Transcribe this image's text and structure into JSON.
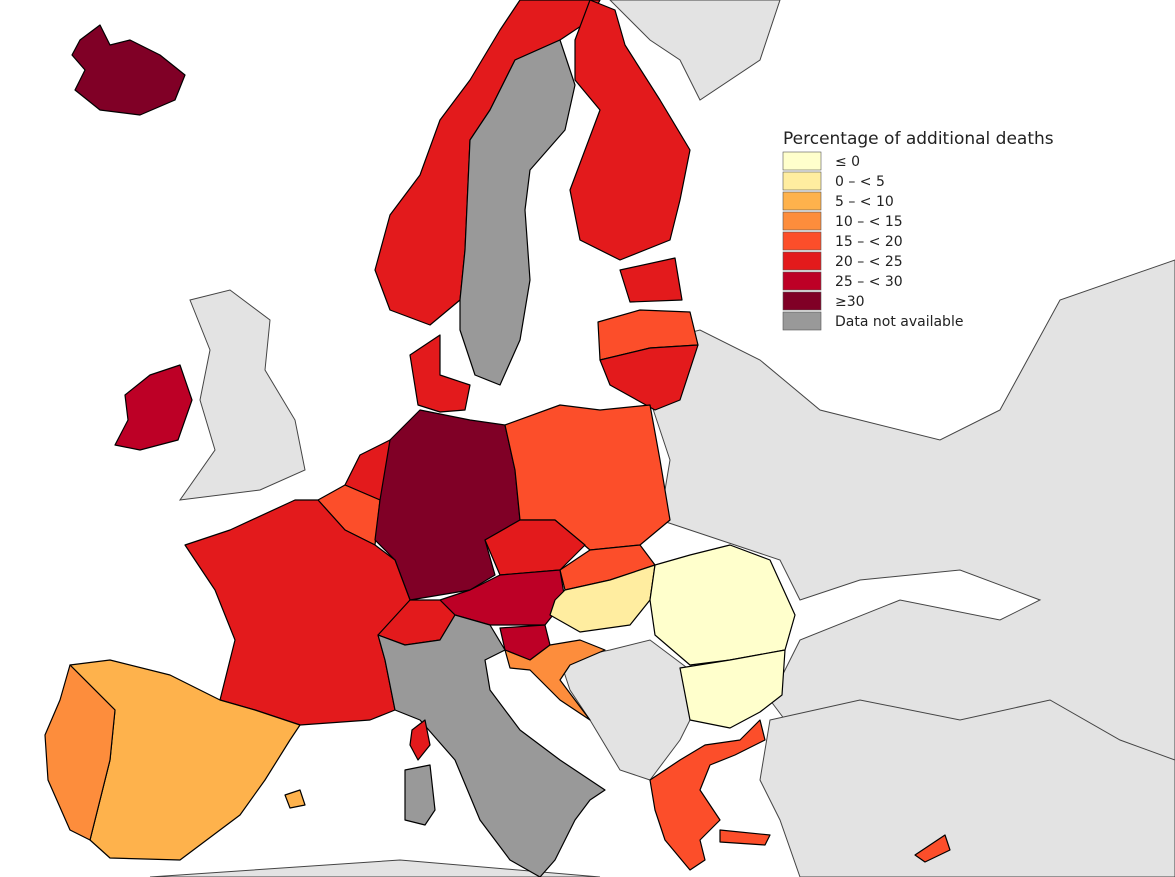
{
  "legend": {
    "title": "Percentage of additional deaths",
    "items": [
      {
        "label": "≤ 0",
        "color": "#ffffcc"
      },
      {
        "label": "0 – < 5",
        "color": "#ffeda0"
      },
      {
        "label": "5 – < 10",
        "color": "#feb24c"
      },
      {
        "label": "10 – < 15",
        "color": "#fd8d3c"
      },
      {
        "label": "15 – < 20",
        "color": "#fc4e2a"
      },
      {
        "label": "20 – < 25",
        "color": "#e31a1c"
      },
      {
        "label": "25 – < 30",
        "color": "#bd0026"
      },
      {
        "label": "≥30",
        "color": "#800026"
      },
      {
        "label": "Data not available",
        "color": "#999999"
      }
    ]
  }
}
